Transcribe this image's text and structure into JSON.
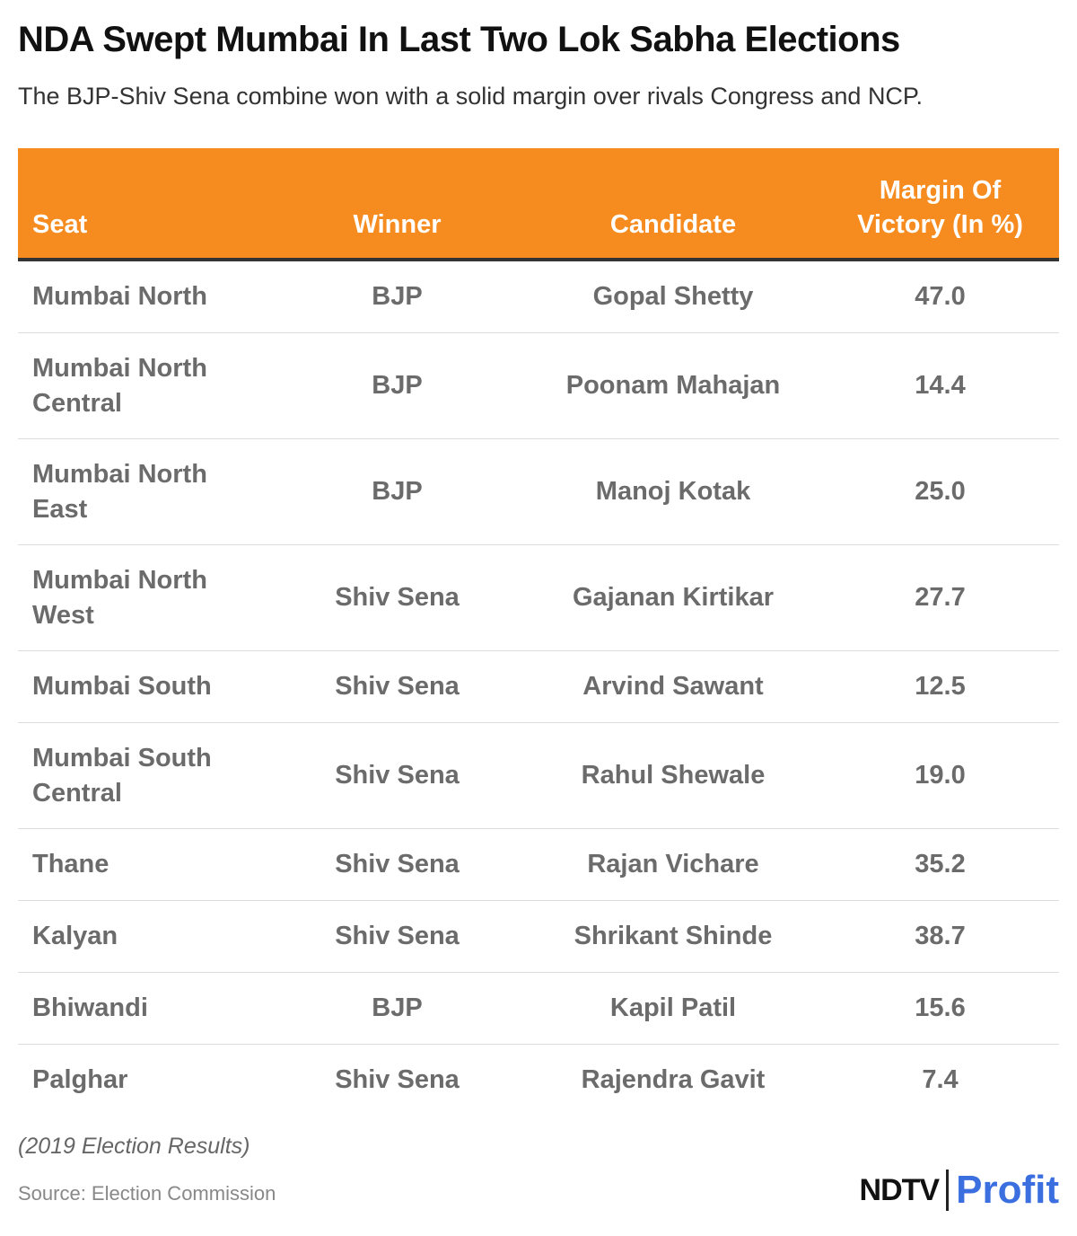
{
  "header": {
    "title": "NDA Swept Mumbai In Last Two Lok Sabha Elections",
    "subtitle": "The BJP-Shiv Sena combine won with a solid margin over rivals Congress and NCP."
  },
  "table": {
    "columns": [
      "Seat",
      "Winner",
      "Candidate",
      "Margin Of Victory (In %)"
    ],
    "rows": [
      [
        "Mumbai North",
        "BJP",
        "Gopal Shetty",
        "47.0"
      ],
      [
        "Mumbai North Central",
        "BJP",
        "Poonam Mahajan",
        "14.4"
      ],
      [
        "Mumbai North East",
        "BJP",
        "Manoj Kotak",
        "25.0"
      ],
      [
        "Mumbai North West",
        "Shiv Sena",
        "Gajanan Kirtikar",
        "27.7"
      ],
      [
        "Mumbai South",
        "Shiv Sena",
        "Arvind Sawant",
        "12.5"
      ],
      [
        "Mumbai South Central",
        "Shiv Sena",
        "Rahul Shewale",
        "19.0"
      ],
      [
        "Thane",
        "Shiv Sena",
        "Rajan Vichare",
        "35.2"
      ],
      [
        "Kalyan",
        "Shiv Sena",
        "Shrikant Shinde",
        "38.7"
      ],
      [
        "Bhiwandi",
        "BJP",
        "Kapil Patil",
        "15.6"
      ],
      [
        "Palghar",
        "Shiv Sena",
        "Rajendra Gavit",
        "7.4"
      ]
    ]
  },
  "footer": {
    "note": "(2019 Election Results)",
    "source": "Source: Election Commission",
    "logo": {
      "brand": "NDTV",
      "product": "Profit"
    }
  }
}
